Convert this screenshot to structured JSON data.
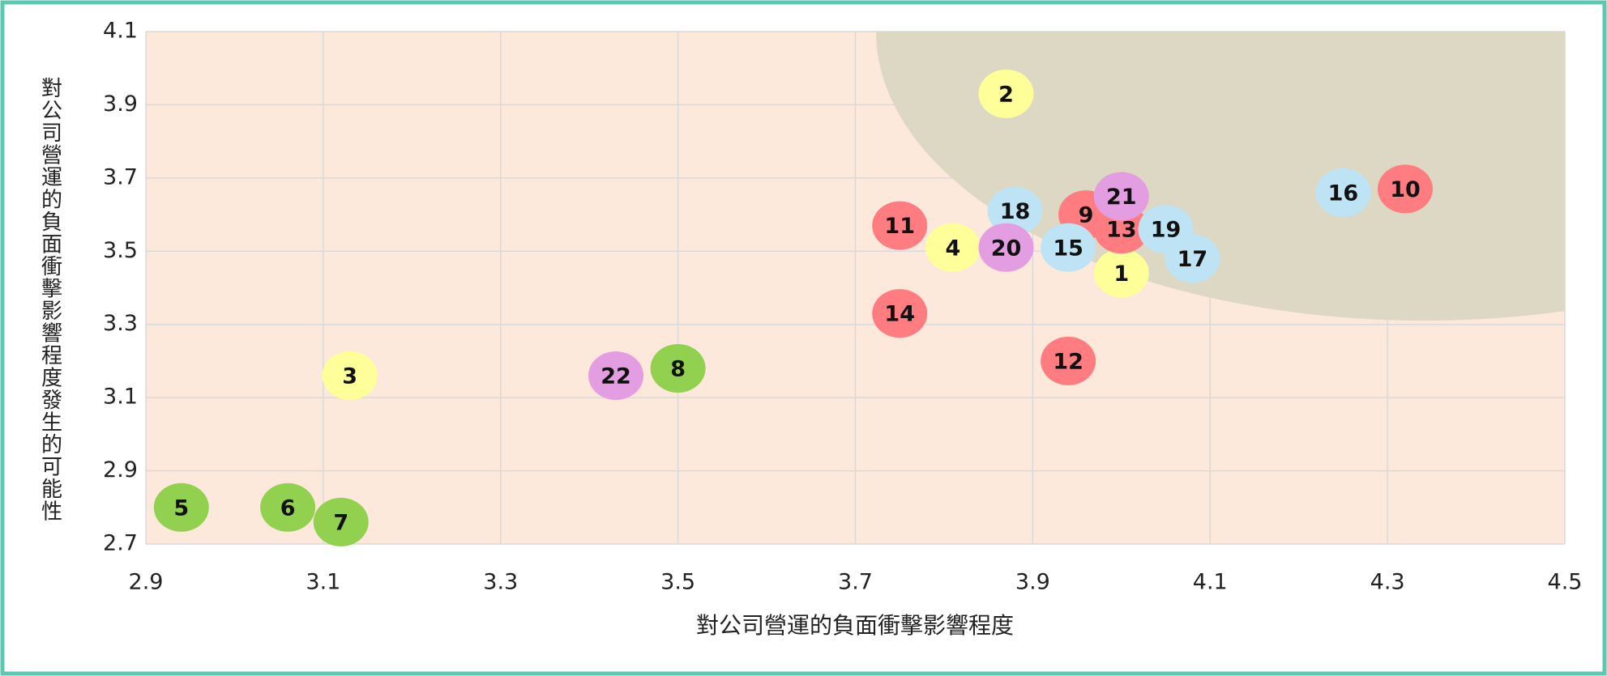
{
  "chart_data": {
    "type": "scatter",
    "xlabel": "對公司營運的負面衝擊影響程度",
    "ylabel": "對公司營運的負面衝擊影響程度發生的可能性",
    "xlim": [
      2.9,
      4.5
    ],
    "ylim": [
      2.7,
      4.1
    ],
    "xticks": [
      2.9,
      3.1,
      3.3,
      3.5,
      3.7,
      3.9,
      4.1,
      4.3,
      4.5
    ],
    "yticks": [
      2.7,
      2.9,
      3.1,
      3.3,
      3.5,
      3.7,
      3.9,
      4.1
    ],
    "grid": true,
    "labels": [
      "1",
      "2",
      "3",
      "4",
      "5",
      "6",
      "7",
      "8",
      "9",
      "10",
      "11",
      "12",
      "13",
      "14",
      "15",
      "16",
      "17",
      "18",
      "19",
      "20",
      "21",
      "22"
    ],
    "x": [
      4.0,
      3.87,
      3.13,
      3.81,
      2.94,
      3.06,
      3.12,
      3.5,
      3.96,
      4.32,
      3.75,
      3.94,
      4.0,
      3.75,
      3.94,
      4.25,
      4.08,
      3.88,
      4.05,
      3.87,
      4.0,
      3.43
    ],
    "y": [
      3.44,
      3.93,
      3.16,
      3.51,
      2.8,
      2.8,
      2.76,
      3.18,
      3.6,
      3.67,
      3.57,
      3.2,
      3.56,
      3.33,
      3.51,
      3.66,
      3.48,
      3.61,
      3.56,
      3.51,
      3.65,
      3.16
    ],
    "colors": [
      "#ffff99",
      "#ffff99",
      "#ffff99",
      "#ffff99",
      "#92d050",
      "#92d050",
      "#92d050",
      "#92d050",
      "#ff7c80",
      "#ff7c80",
      "#ff7c80",
      "#ff7c80",
      "#ff7c80",
      "#ff7c80",
      "#bde3f5",
      "#bde3f5",
      "#bde3f5",
      "#bde3f5",
      "#bde3f5",
      "#e29ee0",
      "#e29ee0",
      "#e29ee0"
    ]
  }
}
